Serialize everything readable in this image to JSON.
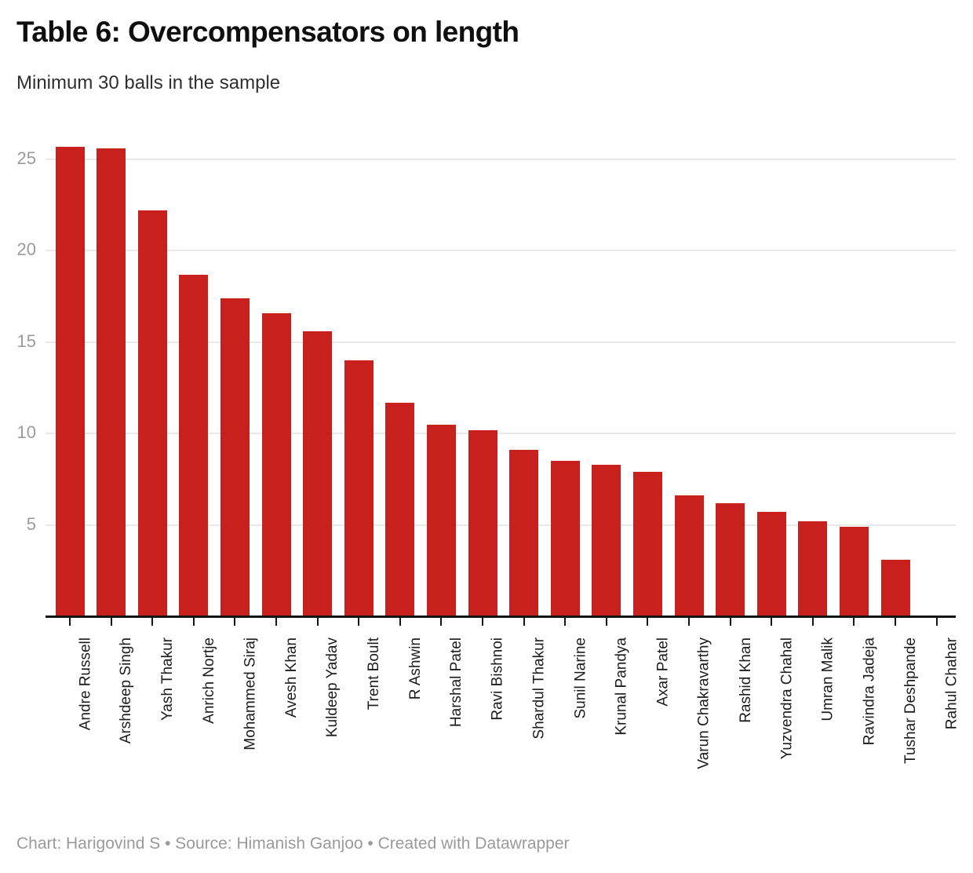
{
  "header": {
    "title": "Table 6: Overcompensators on length",
    "subtitle": "Minimum 30 balls in the sample"
  },
  "footer": {
    "text": "Chart: Harigovind S • Source: Himanish Ganjoo • Created with Datawrapper"
  },
  "colors": {
    "bar": "#c8211d",
    "gridline": "#e9e9e9",
    "axis": "#141414",
    "y_tick_label": "#9b9b9b",
    "x_tick_label": "#1c1c1c",
    "title": "#0f0f0f",
    "subtitle": "#2f2f2f",
    "attribution": "#9a9a9a",
    "background": "#ffffff"
  },
  "chart_data": {
    "type": "bar",
    "title": "Table 6: Overcompensators on length",
    "subtitle": "Minimum 30 balls in the sample",
    "xlabel": "",
    "ylabel": "",
    "categories": [
      "Andre Russell",
      "Arshdeep Singh",
      "Yash Thakur",
      "Anrich Nortje",
      "Mohammed Siraj",
      "Avesh Khan",
      "Kuldeep Yadav",
      "Trent Boult",
      "R Ashwin",
      "Harshal Patel",
      "Ravi Bishnoi",
      "Shardul Thakur",
      "Sunil Narine",
      "Krunal Pandya",
      "Axar Patel",
      "Varun Chakravarthy",
      "Rashid Khan",
      "Yuzvendra Chahal",
      "Umran Malik",
      "Ravindra Jadeja",
      "Tushar Deshpande",
      "Rahul Chahar"
    ],
    "values": [
      25.7,
      25.6,
      22.2,
      18.7,
      17.4,
      16.6,
      15.6,
      14.0,
      11.7,
      10.5,
      10.2,
      9.1,
      8.5,
      8.3,
      7.9,
      6.6,
      6.2,
      5.7,
      5.2,
      4.9,
      3.1,
      0
    ],
    "ylim": [
      0,
      26.4
    ],
    "yticks": [
      5,
      10,
      15,
      20,
      25
    ],
    "grid": "horizontal",
    "legend": "none",
    "bar_color": "#c8211d",
    "bar_orientation": "vertical",
    "x_label_rotation": -90
  }
}
